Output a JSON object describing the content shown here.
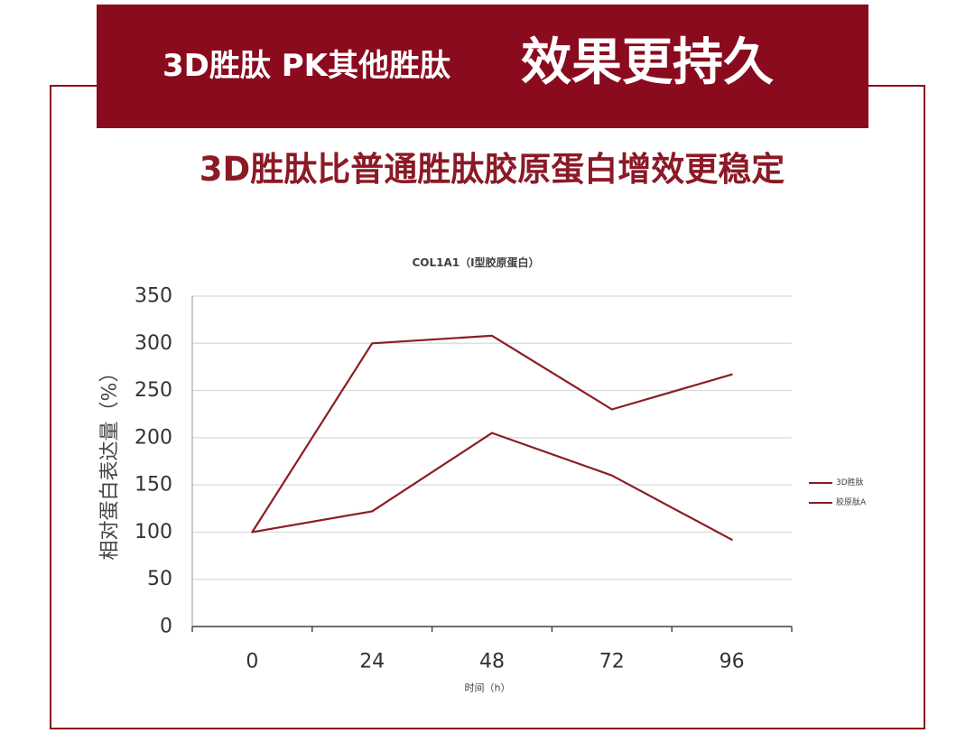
{
  "colors": {
    "brand": "#8a0a1e",
    "subtitle_text": "#8b1a26",
    "banner_text": "#ffffff",
    "gridline": "#d9d9d9",
    "axis": "#404040",
    "tick_text": "#333333"
  },
  "banner": {
    "lead": "3D胜肽 PK其他胜肽",
    "headline": "效果更持久"
  },
  "subtitle": "3D胜肽比普通胜肽胶原蛋白增效更稳定",
  "chart_data": {
    "type": "line",
    "title": "COL1A1（I型胶原蛋白）",
    "xlabel": "时间（h）",
    "ylabel": "相对蛋白表达量（%）",
    "categories": [
      0,
      24,
      48,
      72,
      96
    ],
    "yticks": [
      0,
      50,
      100,
      150,
      200,
      250,
      300,
      350
    ],
    "ylim": [
      0,
      350
    ],
    "grid": true,
    "legend": "right",
    "series": [
      {
        "name": "3D胜肽",
        "color": "#8b1d24",
        "values": [
          100,
          300,
          308,
          230,
          267
        ]
      },
      {
        "name": "胶原肽A",
        "color": "#8b1d24",
        "values": [
          100,
          122,
          205,
          160,
          92
        ]
      }
    ]
  }
}
